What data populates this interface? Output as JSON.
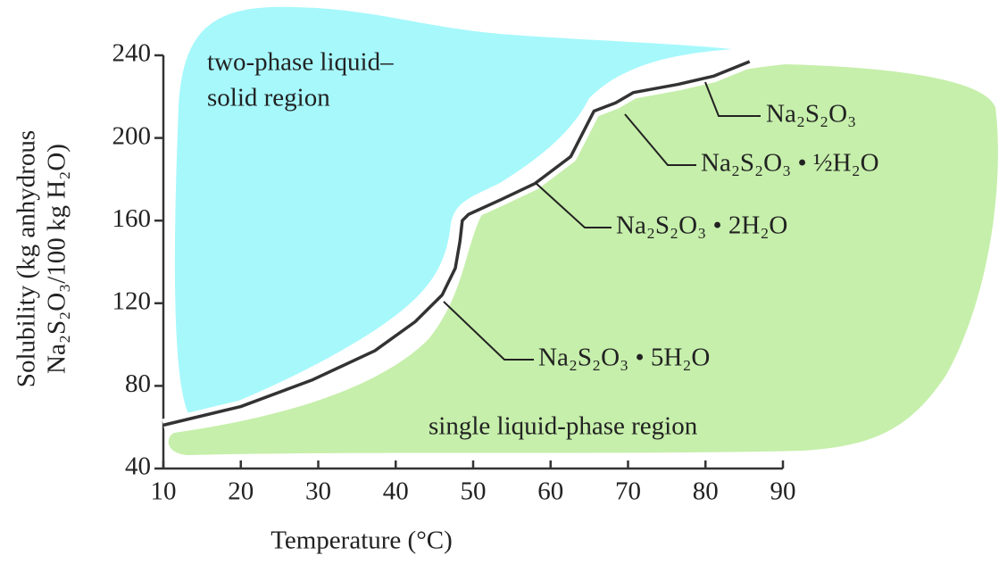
{
  "chart_data": {
    "type": "line",
    "x_label": "Temperature (°C)",
    "y_label": [
      "Solubility (kg anhydrous",
      "Na₂S₂O₃/100 kg H₂O)"
    ],
    "x": [
      10,
      20,
      29.3,
      37.3,
      42.5,
      46,
      47.7,
      48.3,
      48.6,
      49.4,
      53.5,
      58,
      62.6,
      65.6,
      68.4,
      70.7,
      76.5,
      81.1,
      85.7
    ],
    "series": [
      {
        "color": "#333333",
        "values": [
          61,
          70,
          83,
          97,
          111,
          124,
          137,
          150,
          160,
          163,
          170,
          178,
          191,
          213,
          217,
          222,
          226,
          230,
          237
        ]
      }
    ],
    "xlim": [
      10,
      90
    ],
    "ylim": [
      40,
      240
    ],
    "xticks": [
      10,
      20,
      30,
      40,
      50,
      60,
      70,
      80,
      90
    ],
    "yticks": [
      40,
      80,
      120,
      160,
      200,
      240
    ],
    "regions": [
      [
        "two-phase liquid–",
        "solid region"
      ],
      [
        "single liquid-phase region"
      ]
    ],
    "annotations": [
      "Na₂S₂O₃",
      "Na₂S₂O₃ • ½H₂O",
      "Na₂S₂O₃ • 2H₂O",
      "Na₂S₂O₃ • 5H₂O"
    ]
  }
}
